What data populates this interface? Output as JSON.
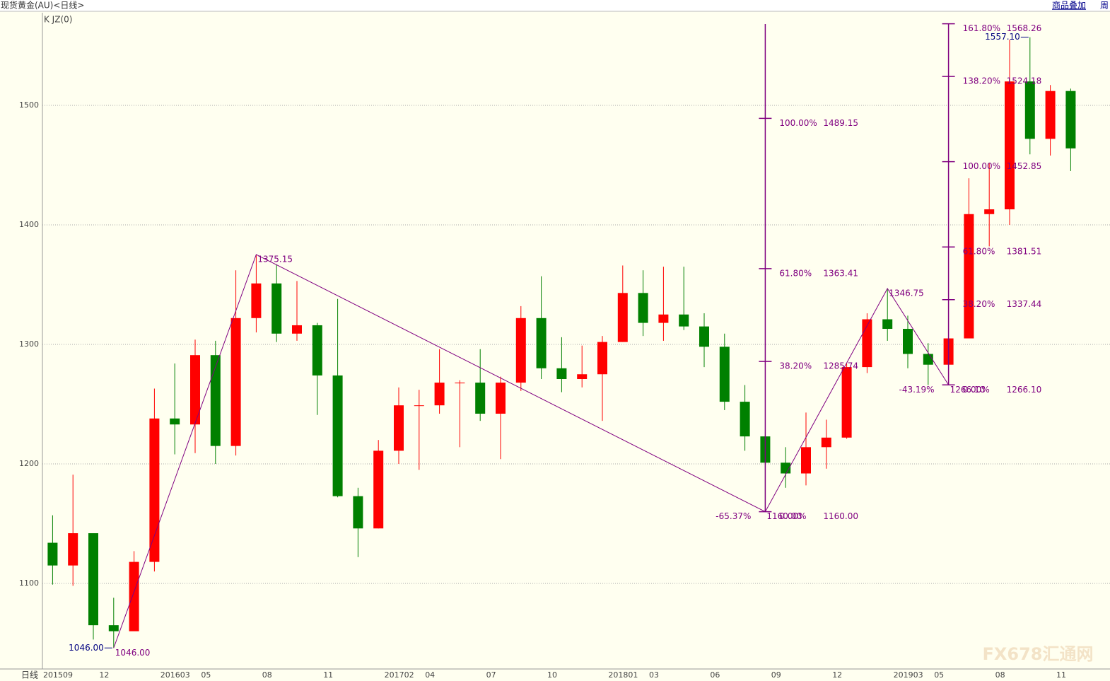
{
  "chart_data": {
    "type": "candlestick",
    "title": "现货黄金(AU)<日线>",
    "indicator": "K JZ(0)",
    "period": "日线",
    "toolbar": [
      "商品叠加",
      "周"
    ],
    "watermark": "FX678汇通网",
    "up_color": "#ff0000",
    "down_color": "#008000",
    "grid": true,
    "ylim": [
      1028.4,
      1577.5
    ],
    "yticks": [
      1100,
      1200,
      1300,
      1400,
      1500
    ],
    "categories": [
      "201509",
      null,
      null,
      "12",
      null,
      null,
      "201603",
      null,
      "05",
      null,
      null,
      "08",
      null,
      null,
      "11",
      null,
      null,
      "201702",
      null,
      "04",
      null,
      null,
      "07",
      null,
      null,
      "10",
      null,
      null,
      "201801",
      null,
      "03",
      null,
      null,
      "06",
      null,
      null,
      "09",
      null,
      null,
      "12",
      null,
      null,
      "201903",
      null,
      "05",
      null,
      null,
      "08",
      null,
      null,
      "11"
    ],
    "candles": [
      {
        "o": 1134,
        "h": 1157,
        "l": 1099,
        "c": 1115
      },
      {
        "o": 1115,
        "h": 1191,
        "l": 1098,
        "c": 1142
      },
      {
        "o": 1142,
        "h": 1142,
        "l": 1053,
        "c": 1065
      },
      {
        "o": 1065,
        "h": 1088,
        "l": 1046,
        "c": 1060
      },
      {
        "o": 1060,
        "h": 1127,
        "l": 1062,
        "c": 1118
      },
      {
        "o": 1118,
        "h": 1263,
        "l": 1110,
        "c": 1238
      },
      {
        "o": 1238,
        "h": 1284,
        "l": 1208,
        "c": 1233
      },
      {
        "o": 1233,
        "h": 1304,
        "l": 1209,
        "c": 1291
      },
      {
        "o": 1291,
        "h": 1303,
        "l": 1200,
        "c": 1215
      },
      {
        "o": 1215,
        "h": 1362,
        "l": 1207,
        "c": 1322
      },
      {
        "o": 1322,
        "h": 1375,
        "l": 1310,
        "c": 1351
      },
      {
        "o": 1351,
        "h": 1367,
        "l": 1302,
        "c": 1309
      },
      {
        "o": 1309,
        "h": 1353,
        "l": 1303,
        "c": 1316
      },
      {
        "o": 1316,
        "h": 1318,
        "l": 1241,
        "c": 1274
      },
      {
        "o": 1274,
        "h": 1338,
        "l": 1172,
        "c": 1173
      },
      {
        "o": 1173,
        "h": 1180,
        "l": 1122,
        "c": 1146
      },
      {
        "o": 1146,
        "h": 1220,
        "l": 1146,
        "c": 1211
      },
      {
        "o": 1211,
        "h": 1264,
        "l": 1200,
        "c": 1249
      },
      {
        "o": 1249,
        "h": 1262,
        "l": 1195,
        "c": 1249
      },
      {
        "o": 1249,
        "h": 1296,
        "l": 1242,
        "c": 1268
      },
      {
        "o": 1268,
        "h": 1270,
        "l": 1214,
        "c": 1268
      },
      {
        "o": 1268,
        "h": 1296,
        "l": 1236,
        "c": 1242
      },
      {
        "o": 1242,
        "h": 1273,
        "l": 1204,
        "c": 1268
      },
      {
        "o": 1268,
        "h": 1332,
        "l": 1261,
        "c": 1322
      },
      {
        "o": 1322,
        "h": 1357,
        "l": 1271,
        "c": 1280
      },
      {
        "o": 1280,
        "h": 1306,
        "l": 1260,
        "c": 1271
      },
      {
        "o": 1271,
        "h": 1299,
        "l": 1264,
        "c": 1275
      },
      {
        "o": 1275,
        "h": 1307,
        "l": 1236,
        "c": 1302
      },
      {
        "o": 1302,
        "h": 1366,
        "l": 1302,
        "c": 1343
      },
      {
        "o": 1343,
        "h": 1362,
        "l": 1307,
        "c": 1318
      },
      {
        "o": 1318,
        "h": 1365,
        "l": 1303,
        "c": 1325
      },
      {
        "o": 1325,
        "h": 1365,
        "l": 1312,
        "c": 1315
      },
      {
        "o": 1315,
        "h": 1326,
        "l": 1281,
        "c": 1298
      },
      {
        "o": 1298,
        "h": 1309,
        "l": 1245,
        "c": 1252
      },
      {
        "o": 1252,
        "h": 1266,
        "l": 1211,
        "c": 1223
      },
      {
        "o": 1223,
        "h": 1224,
        "l": 1160,
        "c": 1201
      },
      {
        "o": 1201,
        "h": 1214,
        "l": 1180,
        "c": 1192
      },
      {
        "o": 1192,
        "h": 1243,
        "l": 1182,
        "c": 1214
      },
      {
        "o": 1214,
        "h": 1237,
        "l": 1196,
        "c": 1222
      },
      {
        "o": 1222,
        "h": 1284,
        "l": 1221,
        "c": 1281
      },
      {
        "o": 1281,
        "h": 1326,
        "l": 1276,
        "c": 1321
      },
      {
        "o": 1321,
        "h": 1346,
        "l": 1303,
        "c": 1313
      },
      {
        "o": 1313,
        "h": 1324,
        "l": 1280,
        "c": 1292
      },
      {
        "o": 1292,
        "h": 1301,
        "l": 1266,
        "c": 1283
      },
      {
        "o": 1283,
        "h": 1305,
        "l": 1267,
        "c": 1305
      },
      {
        "o": 1305,
        "h": 1439,
        "l": 1305,
        "c": 1409
      },
      {
        "o": 1409,
        "h": 1452,
        "l": 1382,
        "c": 1413
      },
      {
        "o": 1413,
        "h": 1555,
        "l": 1400,
        "c": 1520
      },
      {
        "o": 1520,
        "h": 1557,
        "l": 1459,
        "c": 1472
      },
      {
        "o": 1472,
        "h": 1517,
        "l": 1458,
        "c": 1512
      },
      {
        "o": 1512,
        "h": 1514,
        "l": 1445,
        "c": 1464
      }
    ],
    "annotation_color": "#800080",
    "extreme_color": "#000080",
    "zigzag": [
      {
        "candle": 3,
        "value": 1046,
        "value_label": "1046.00"
      },
      {
        "candle": 10,
        "value": 1375.15,
        "value_label": "1375.15"
      },
      {
        "candle": 35,
        "value": 1160,
        "value_label": "1160.00",
        "ratio": "-65.37%"
      },
      {
        "candle": 41,
        "value": 1346.75,
        "value_label": "1346.75"
      },
      {
        "candle": 44,
        "value": 1266.1,
        "value_label": "1266.10",
        "ratio": "-43.19%"
      }
    ],
    "extremes": [
      {
        "candle": 3,
        "value": 1046,
        "value_label": "1046.00"
      },
      {
        "candle": 48,
        "value": 1557.1,
        "value_label": "1557.10"
      }
    ],
    "fibs": [
      {
        "candle": 35,
        "levels": [
          {
            "label": "0.00%",
            "value": 1160,
            "value_label": "1160.00"
          },
          {
            "label": "38.20%",
            "value": 1285.74,
            "value_label": "1285.74"
          },
          {
            "label": "61.80%",
            "value": 1363.41,
            "value_label": "1363.41"
          },
          {
            "label": "100.00%",
            "value": 1489.15,
            "value_label": "1489.15"
          }
        ]
      },
      {
        "candle": 44,
        "levels": [
          {
            "label": "0.00%",
            "value": 1266.1,
            "value_label": "1266.10"
          },
          {
            "label": "38.20%",
            "value": 1337.44,
            "value_label": "1337.44"
          },
          {
            "label": "61.80%",
            "value": 1381.51,
            "value_label": "1381.51"
          },
          {
            "label": "100.00%",
            "value": 1452.85,
            "value_label": "1452.85"
          },
          {
            "label": "138.20%",
            "value": 1524.18,
            "value_label": "1524.18"
          },
          {
            "label": "161.80%",
            "value": 1568.26,
            "value_label": "1568.26"
          }
        ]
      }
    ]
  }
}
